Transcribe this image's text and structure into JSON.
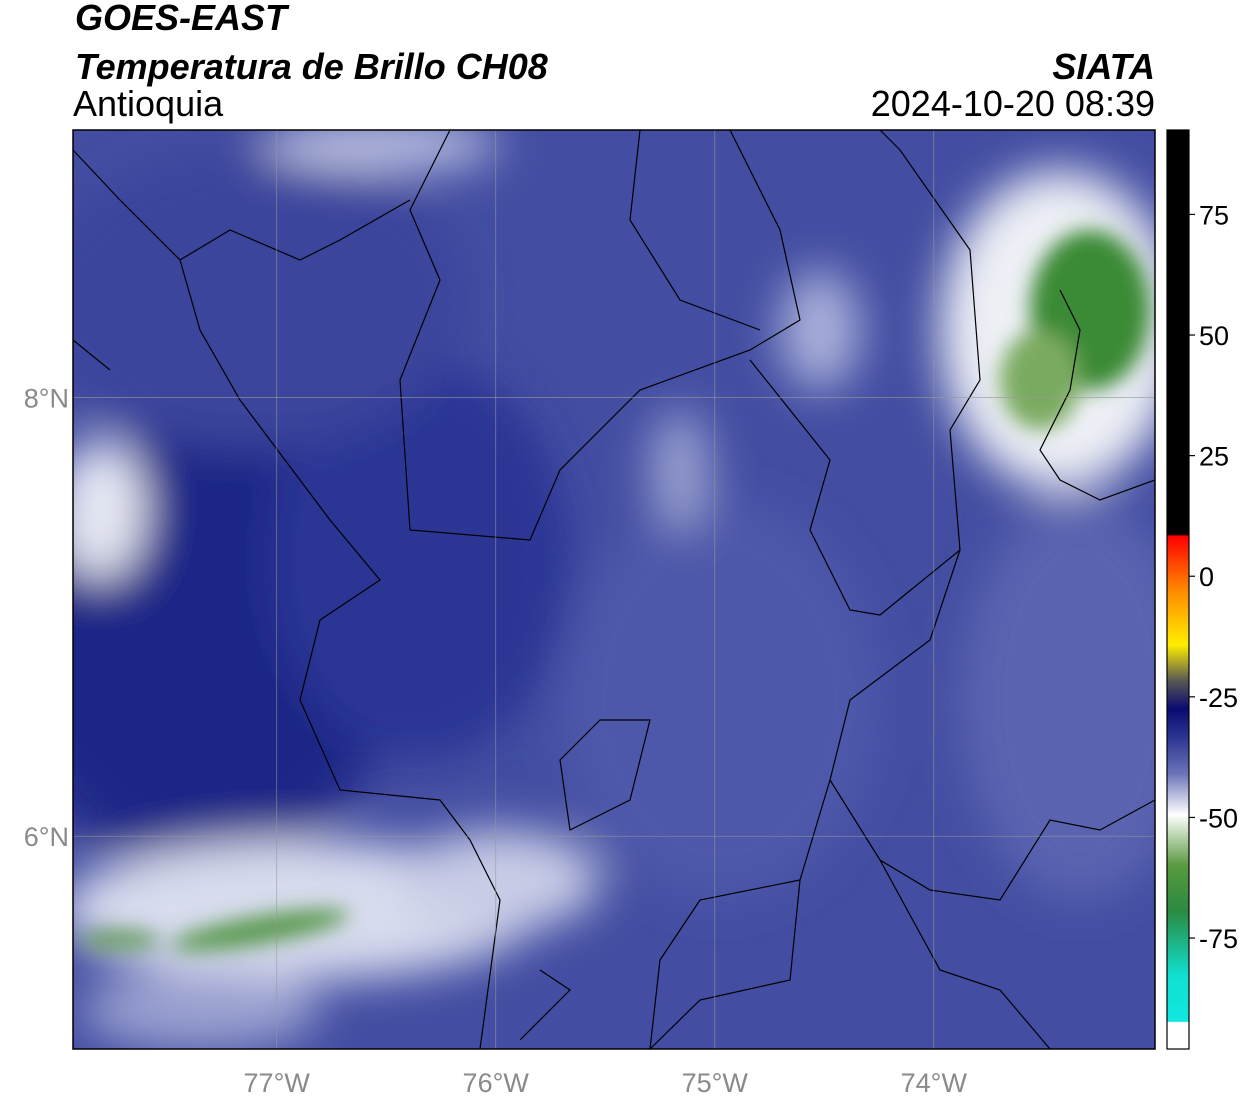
{
  "header": {
    "title": "GOES-EAST",
    "subtitle": "Temperatura de Brillo CH08",
    "region": "Antioquia",
    "source": "SIATA",
    "datetime": "2024-10-20 08:39"
  },
  "map": {
    "lonlim": [
      -77.93,
      -72.99
    ],
    "latlim": [
      5.03,
      9.22
    ],
    "lon_ticks": [
      {
        "value": -77,
        "label": "77°W"
      },
      {
        "value": -76,
        "label": "76°W"
      },
      {
        "value": -75,
        "label": "75°W"
      },
      {
        "value": -74,
        "label": "74°W"
      }
    ],
    "lat_ticks": [
      {
        "value": 8,
        "label": "8°N"
      },
      {
        "value": 6,
        "label": "6°N"
      }
    ]
  },
  "colorbar": {
    "lim": [
      -98,
      92.5
    ],
    "ticks": [
      75,
      50,
      25,
      0,
      -25,
      -50,
      -75
    ]
  }
}
